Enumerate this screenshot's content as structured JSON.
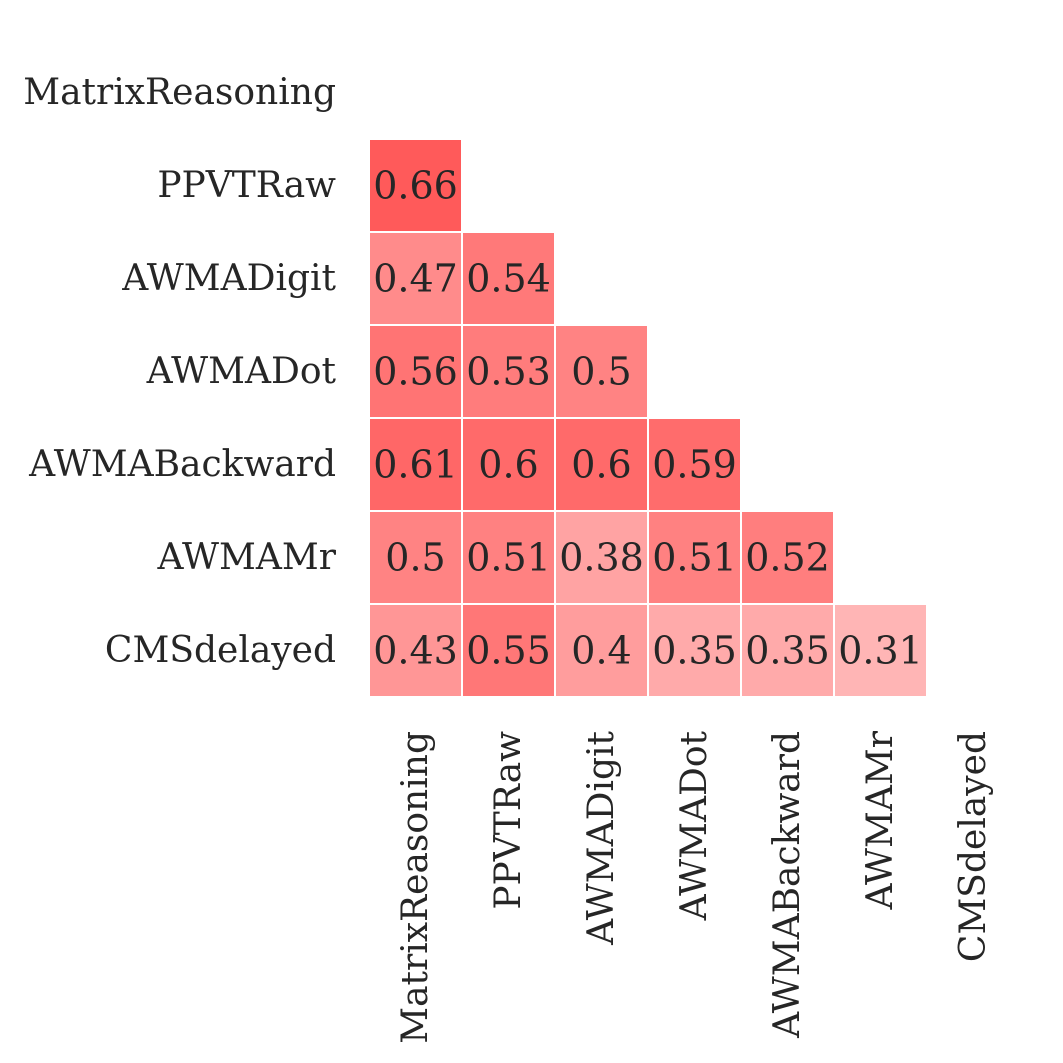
{
  "chart_data": {
    "type": "heatmap",
    "title": "",
    "xlabel": "",
    "ylabel": "",
    "variables": [
      "MatrixReasoning",
      "PPVTRaw",
      "AWMADigit",
      "AWMADot",
      "AWMABackward",
      "AWMAMr",
      "CMSdelayed"
    ],
    "mask": "upper-triangle-and-diagonal",
    "values": [
      [
        null,
        null,
        null,
        null,
        null,
        null,
        null
      ],
      [
        0.66,
        null,
        null,
        null,
        null,
        null,
        null
      ],
      [
        0.47,
        0.54,
        null,
        null,
        null,
        null,
        null
      ],
      [
        0.56,
        0.53,
        0.5,
        null,
        null,
        null,
        null
      ],
      [
        0.61,
        0.6,
        0.6,
        0.59,
        null,
        null,
        null
      ],
      [
        0.5,
        0.51,
        0.38,
        0.51,
        0.52,
        null,
        null
      ],
      [
        0.43,
        0.55,
        0.4,
        0.35,
        0.35,
        0.31,
        null
      ]
    ],
    "annotations": [
      [
        null,
        null,
        null,
        null,
        null,
        null,
        null
      ],
      [
        "0.66",
        null,
        null,
        null,
        null,
        null,
        null
      ],
      [
        "0.47",
        "0.54",
        null,
        null,
        null,
        null,
        null
      ],
      [
        "0.56",
        "0.53",
        "0.5",
        null,
        null,
        null,
        null
      ],
      [
        "0.61",
        "0.6",
        "0.6",
        "0.59",
        null,
        null,
        null
      ],
      [
        "0.5",
        "0.51",
        "0.38",
        "0.51",
        "0.52",
        null,
        null
      ],
      [
        "0.43",
        "0.55",
        "0.4",
        "0.35",
        "0.35",
        "0.31",
        null
      ]
    ],
    "color_min": "#ffffff",
    "color_max": "#ff5a5a",
    "grid": false,
    "legend": "none"
  }
}
